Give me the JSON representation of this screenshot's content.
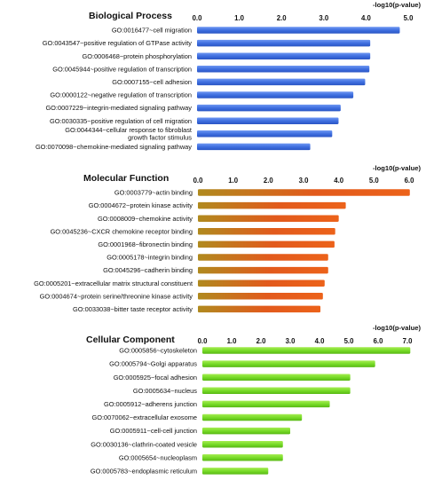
{
  "chart_data": [
    {
      "type": "bar",
      "orientation": "horizontal",
      "title": "Biological Process",
      "xlabel": "-log10(p-value)",
      "xlim": [
        0,
        5.0
      ],
      "xticks": [
        "0.0",
        "1.0",
        "2.0",
        "3.0",
        "4.0",
        "5.0"
      ],
      "bar_color": "#3f6fe0",
      "grid": false,
      "categories": [
        [
          "GO:0016477~cell migration"
        ],
        [
          "GO:0043547~positive regulation of GTPase activity"
        ],
        [
          "GO:0006468~protein phosphorylation"
        ],
        [
          "GO:0045944~positive regulation of transcription"
        ],
        [
          "GO:0007155~cell adhesion"
        ],
        [
          "GO:0000122~negative regulation of transcription"
        ],
        [
          "GO:0007229~integrin-mediated signaling pathway"
        ],
        [
          "GO:0030335~positive regulation of cell migration"
        ],
        [
          "GO:0044344~cellular response to fibroblast",
          "growth factor stimulus"
        ],
        [
          "GO:0070098~chemokine-mediated signaling pathway"
        ]
      ],
      "values": [
        4.8,
        4.1,
        4.1,
        4.08,
        3.98,
        3.7,
        3.4,
        3.35,
        3.2,
        2.68
      ]
    },
    {
      "type": "bar",
      "orientation": "horizontal",
      "title": "Molecular Function",
      "xlabel": "-log10(p-value)",
      "xlim": [
        0,
        6.0
      ],
      "xticks": [
        "0.0",
        "1.0",
        "2.0",
        "3.0",
        "4.0",
        "5.0",
        "6.0"
      ],
      "bar_color": "#e8621c",
      "grid": false,
      "categories": [
        [
          "GO:0003779~actin binding"
        ],
        [
          "GO:0004672~protein kinase activity"
        ],
        [
          "GO:0008009~chemokine activity"
        ],
        [
          "GO:0045236~CXCR chemokine receptor binding"
        ],
        [
          "GO:0001968~fibronectin binding"
        ],
        [
          "GO:0005178~integrin binding"
        ],
        [
          "GO:0045296~cadherin binding"
        ],
        [
          "GO:0005201~extracellular matrix structural constituent"
        ],
        [
          "GO:0004674~protein serine/threonine kinase activity"
        ],
        [
          "GO:0033038~bitter taste receptor activity"
        ]
      ],
      "values": [
        6.02,
        4.2,
        4.0,
        3.9,
        3.88,
        3.7,
        3.7,
        3.6,
        3.55,
        3.48
      ]
    },
    {
      "type": "bar",
      "orientation": "horizontal",
      "title": "Cellular Component",
      "xlabel": "-log10(p-value)",
      "xlim": [
        0,
        7.0
      ],
      "xticks": [
        "0.0",
        "1.0",
        "2.0",
        "3.0",
        "4.0",
        "5.0",
        "6.0",
        "7.0"
      ],
      "bar_color": "#78dc28",
      "grid": false,
      "categories": [
        [
          "GO:0005856~cytoskeleton"
        ],
        [
          "GO:0005794~Golgi apparatus"
        ],
        [
          "GO:0005925~focal adhesion"
        ],
        [
          "GO:0005634~nucleus"
        ],
        [
          "GO:0005912~adherens junction"
        ],
        [
          "GO:0070062~extracellular exosome"
        ],
        [
          "GO:0005911~cell-cell junction"
        ],
        [
          "GO:0030136~clathrin-coated vesicle"
        ],
        [
          "GO:0005654~nucleoplasm"
        ],
        [
          "GO:0005783~endoplasmic reticulum"
        ]
      ],
      "values": [
        7.1,
        5.9,
        5.05,
        5.05,
        4.35,
        3.4,
        3.0,
        2.75,
        2.75,
        2.25
      ]
    }
  ]
}
